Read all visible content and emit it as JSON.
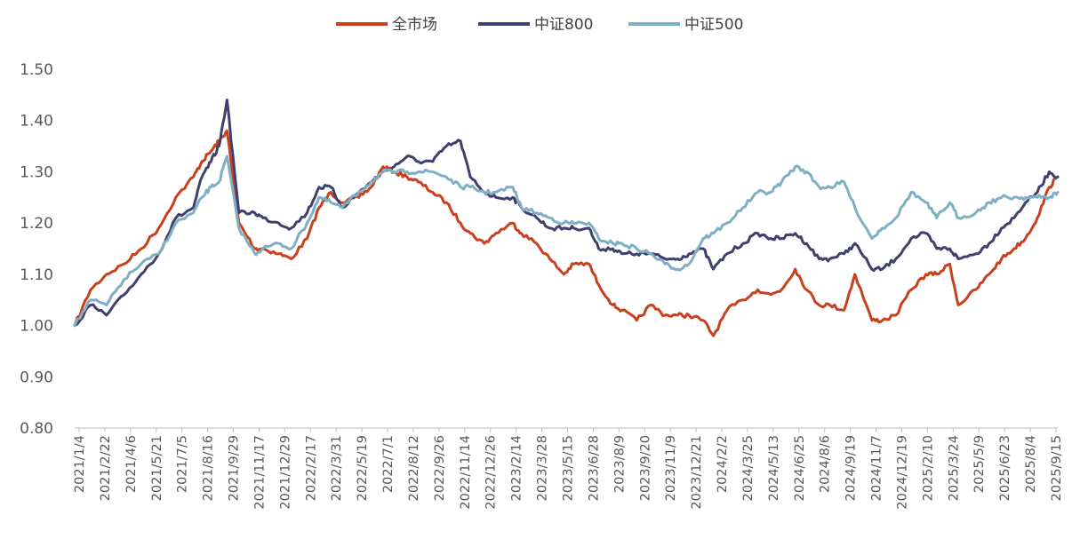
{
  "chart_data": {
    "type": "line",
    "title": "",
    "xlabel": "",
    "ylabel": "",
    "ylim": [
      0.8,
      1.5
    ],
    "yticks": [
      "0.80",
      "0.90",
      "1.00",
      "1.10",
      "1.20",
      "1.30",
      "1.40",
      "1.50"
    ],
    "grid": false,
    "legend_position": "top-center",
    "x_tick_labels": [
      "2021/1/4",
      "2021/2/22",
      "2021/4/6",
      "2021/5/21",
      "2021/7/5",
      "2021/8/16",
      "2021/9/29",
      "2021/11/17",
      "2021/12/29",
      "2022/2/17",
      "2022/3/31",
      "2022/5/19",
      "2022/7/1",
      "2022/8/12",
      "2022/9/26",
      "2022/11/14",
      "2022/12/26",
      "2023/2/14",
      "2023/3/28",
      "2023/5/15",
      "2023/6/28",
      "2023/8/9",
      "2023/9/20",
      "2023/11/9",
      "2023/12/21",
      "2024/2/2",
      "2024/3/25",
      "2024/5/13",
      "2024/6/25",
      "2024/8/6",
      "2024/9/19",
      "2024/11/7",
      "2024/12/19",
      "2025/2/10",
      "2025/3/24",
      "2025/5/9",
      "2025/6/23",
      "2025/8/4",
      "2025/9/15"
    ],
    "x": [
      "2021/1/4",
      "2021/2/1",
      "2021/3/1",
      "2021/4/1",
      "2021/5/1",
      "2021/6/1",
      "2021/7/1",
      "2021/8/1",
      "2021/8/16",
      "2021/9/1",
      "2021/9/15",
      "2021/9/29",
      "2021/10/20",
      "2021/11/17",
      "2021/12/1",
      "2021/12/29",
      "2022/1/20",
      "2022/2/17",
      "2022/3/10",
      "2022/3/31",
      "2022/4/20",
      "2022/5/19",
      "2022/6/10",
      "2022/7/1",
      "2022/7/20",
      "2022/8/12",
      "2022/9/1",
      "2022/9/26",
      "2022/10/20",
      "2022/11/14",
      "2022/12/1",
      "2022/12/26",
      "2023/1/15",
      "2023/2/14",
      "2023/3/1",
      "2023/3/28",
      "2023/4/20",
      "2023/5/15",
      "2023/6/1",
      "2023/6/28",
      "2023/7/15",
      "2023/8/9",
      "2023/8/25",
      "2023/9/20",
      "2023/10/15",
      "2023/11/9",
      "2023/12/1",
      "2023/12/21",
      "2024/1/15",
      "2024/2/2",
      "2024/2/26",
      "2024/3/25",
      "2024/4/20",
      "2024/5/13",
      "2024/6/1",
      "2024/6/25",
      "2024/7/15",
      "2024/8/6",
      "2024/8/25",
      "2024/9/19",
      "2024/10/8",
      "2024/11/7",
      "2024/11/25",
      "2024/12/19",
      "2025/1/15",
      "2025/2/10",
      "2025/3/1",
      "2025/3/24",
      "2025/4/8",
      "2025/5/9",
      "2025/6/1",
      "2025/6/23",
      "2025/7/15",
      "2025/8/4",
      "2025/8/25",
      "2025/9/15",
      "2025/9/30"
    ],
    "series": [
      {
        "name": "全市场",
        "color": "#C8401E",
        "values": [
          1.0,
          1.07,
          1.1,
          1.12,
          1.15,
          1.19,
          1.25,
          1.29,
          1.32,
          1.34,
          1.36,
          1.38,
          1.2,
          1.15,
          1.15,
          1.14,
          1.13,
          1.17,
          1.23,
          1.26,
          1.24,
          1.25,
          1.27,
          1.31,
          1.3,
          1.29,
          1.28,
          1.26,
          1.24,
          1.2,
          1.18,
          1.16,
          1.18,
          1.2,
          1.18,
          1.16,
          1.13,
          1.1,
          1.12,
          1.12,
          1.08,
          1.04,
          1.03,
          1.01,
          1.04,
          1.02,
          1.02,
          1.02,
          1.01,
          0.98,
          1.03,
          1.05,
          1.07,
          1.06,
          1.07,
          1.11,
          1.07,
          1.04,
          1.04,
          1.03,
          1.1,
          1.01,
          1.01,
          1.02,
          1.07,
          1.1,
          1.1,
          1.12,
          1.04,
          1.07,
          1.1,
          1.13,
          1.15,
          1.17,
          1.21,
          1.27,
          1.29
        ]
      },
      {
        "name": "中证800",
        "color": "#40406E",
        "values": [
          1.0,
          1.04,
          1.02,
          1.06,
          1.1,
          1.14,
          1.21,
          1.23,
          1.29,
          1.32,
          1.35,
          1.44,
          1.22,
          1.22,
          1.21,
          1.2,
          1.19,
          1.22,
          1.27,
          1.27,
          1.23,
          1.26,
          1.28,
          1.3,
          1.31,
          1.33,
          1.32,
          1.32,
          1.35,
          1.36,
          1.29,
          1.26,
          1.25,
          1.25,
          1.23,
          1.21,
          1.19,
          1.19,
          1.19,
          1.19,
          1.15,
          1.15,
          1.14,
          1.14,
          1.14,
          1.13,
          1.13,
          1.14,
          1.15,
          1.11,
          1.14,
          1.16,
          1.18,
          1.17,
          1.17,
          1.18,
          1.16,
          1.13,
          1.13,
          1.14,
          1.16,
          1.11,
          1.11,
          1.13,
          1.17,
          1.18,
          1.15,
          1.15,
          1.13,
          1.14,
          1.16,
          1.19,
          1.21,
          1.24,
          1.26,
          1.3,
          1.29
        ]
      },
      {
        "name": "中证500",
        "color": "#7EAFC4",
        "values": [
          1.0,
          1.05,
          1.04,
          1.09,
          1.12,
          1.14,
          1.2,
          1.22,
          1.25,
          1.27,
          1.28,
          1.33,
          1.19,
          1.14,
          1.15,
          1.16,
          1.15,
          1.2,
          1.25,
          1.24,
          1.23,
          1.26,
          1.28,
          1.3,
          1.3,
          1.3,
          1.3,
          1.3,
          1.29,
          1.27,
          1.27,
          1.26,
          1.26,
          1.27,
          1.23,
          1.22,
          1.21,
          1.2,
          1.2,
          1.2,
          1.17,
          1.16,
          1.16,
          1.15,
          1.14,
          1.12,
          1.11,
          1.12,
          1.17,
          1.18,
          1.2,
          1.23,
          1.26,
          1.26,
          1.28,
          1.31,
          1.3,
          1.27,
          1.27,
          1.28,
          1.23,
          1.17,
          1.19,
          1.21,
          1.26,
          1.24,
          1.21,
          1.24,
          1.21,
          1.22,
          1.24,
          1.25,
          1.25,
          1.25,
          1.25,
          1.25,
          1.26
        ]
      }
    ]
  }
}
